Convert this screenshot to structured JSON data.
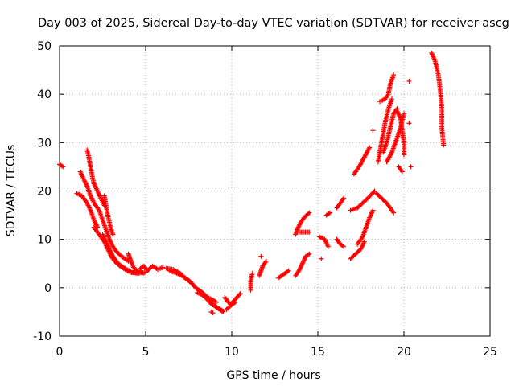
{
  "chart_data": {
    "type": "scatter",
    "title": "Day 003 of 2025, Sidereal Day-to-day VTEC variation (SDTVAR) for receiver ascg",
    "xlabel": "GPS time / hours",
    "ylabel": "SDTVAR / TECUs",
    "xlim": [
      0,
      25
    ],
    "ylim": [
      -10,
      50
    ],
    "xticks": [
      "0",
      "5",
      "10",
      "15",
      "20",
      "25"
    ],
    "yticks": [
      "-10",
      "0",
      "10",
      "20",
      "30",
      "40",
      "50"
    ],
    "marker": "+",
    "grid": true,
    "series": [
      {
        "name": "SDTVAR",
        "color": "#ff0000",
        "segments": [
          [
            [
              0.0,
              25.5
            ],
            [
              0.2,
              25.0
            ]
          ],
          [
            [
              1.0,
              19.5
            ],
            [
              1.3,
              19.0
            ],
            [
              1.6,
              17.5
            ],
            [
              1.8,
              16.0
            ],
            [
              2.0,
              14.0
            ],
            [
              2.2,
              12.5
            ]
          ],
          [
            [
              1.2,
              24.0
            ],
            [
              1.4,
              22.5
            ],
            [
              1.6,
              21.0
            ],
            [
              1.8,
              19.0
            ],
            [
              2.0,
              17.5
            ],
            [
              2.3,
              16.0
            ],
            [
              2.5,
              14.0
            ],
            [
              2.7,
              12.0
            ],
            [
              2.9,
              10.0
            ],
            [
              3.1,
              8.5
            ],
            [
              3.3,
              7.5
            ],
            [
              3.6,
              6.5
            ],
            [
              4.0,
              5.5
            ]
          ],
          [
            [
              1.6,
              28.5
            ],
            [
              1.7,
              27.0
            ],
            [
              1.8,
              25.0
            ],
            [
              1.9,
              23.0
            ],
            [
              2.0,
              21.5
            ],
            [
              2.2,
              20.0
            ],
            [
              2.4,
              18.5
            ],
            [
              2.6,
              17.0
            ]
          ],
          [
            [
              2.0,
              12.5
            ],
            [
              2.3,
              11.0
            ],
            [
              2.6,
              9.5
            ],
            [
              2.8,
              8.0
            ],
            [
              3.0,
              6.5
            ],
            [
              3.2,
              5.5
            ],
            [
              3.5,
              4.5
            ],
            [
              3.8,
              3.8
            ],
            [
              4.1,
              3.2
            ],
            [
              4.5,
              3.0
            ],
            [
              5.0,
              3.2
            ]
          ],
          [
            [
              2.5,
              11.0
            ],
            [
              2.7,
              9.5
            ],
            [
              2.9,
              8.0
            ],
            [
              3.1,
              6.5
            ],
            [
              3.4,
              5.0
            ],
            [
              3.8,
              4.0
            ],
            [
              4.2,
              3.2
            ],
            [
              4.6,
              3.0
            ]
          ],
          [
            [
              2.6,
              19.0
            ],
            [
              2.7,
              17.0
            ],
            [
              2.8,
              15.0
            ],
            [
              2.9,
              13.5
            ],
            [
              3.0,
              12.0
            ],
            [
              3.1,
              11.0
            ]
          ],
          [
            [
              4.0,
              7.0
            ],
            [
              4.1,
              6.0
            ],
            [
              4.2,
              5.0
            ],
            [
              4.3,
              4.2
            ],
            [
              4.5,
              3.5
            ],
            [
              4.9,
              3.0
            ]
          ],
          [
            [
              4.7,
              4.0
            ],
            [
              4.9,
              4.5
            ],
            [
              5.1,
              3.5
            ],
            [
              5.4,
              4.5
            ],
            [
              5.7,
              3.8
            ],
            [
              6.0,
              4.2
            ]
          ],
          [
            [
              6.2,
              4.0
            ],
            [
              6.6,
              3.8
            ],
            [
              7.0,
              3.0
            ],
            [
              7.3,
              2.0
            ],
            [
              7.6,
              1.2
            ],
            [
              7.8,
              0.5
            ]
          ],
          [
            [
              6.4,
              3.5
            ],
            [
              6.8,
              3.0
            ],
            [
              7.1,
              2.5
            ],
            [
              7.5,
              1.5
            ],
            [
              7.9,
              0.0
            ],
            [
              8.3,
              -1.0
            ],
            [
              8.6,
              -2.0
            ],
            [
              8.9,
              -2.5
            ],
            [
              9.1,
              -3.0
            ]
          ],
          [
            [
              8.0,
              -1.0
            ],
            [
              8.3,
              -1.5
            ],
            [
              8.6,
              -2.5
            ],
            [
              8.9,
              -3.5
            ],
            [
              9.2,
              -4.2
            ],
            [
              9.5,
              -4.8
            ]
          ],
          [
            [
              8.7,
              -3.0
            ],
            [
              8.9,
              -3.5
            ],
            [
              9.1,
              -4.0
            ],
            [
              9.3,
              -4.5
            ],
            [
              9.5,
              -5.0
            ]
          ],
          [
            [
              8.9,
              -5.2
            ],
            [
              8.8,
              -5.0
            ]
          ],
          [
            [
              9.6,
              -2.0
            ],
            [
              9.8,
              -3.0
            ],
            [
              10.0,
              -3.5
            ],
            [
              10.2,
              -3.0
            ]
          ],
          [
            [
              9.7,
              -4.5
            ],
            [
              9.9,
              -3.8
            ],
            [
              10.1,
              -2.8
            ],
            [
              10.3,
              -2.0
            ],
            [
              10.5,
              -1.2
            ]
          ],
          [
            [
              11.1,
              -0.5
            ],
            [
              11.1,
              1.5
            ],
            [
              11.2,
              3.0
            ]
          ],
          [
            [
              11.6,
              2.5
            ],
            [
              11.7,
              3.5
            ],
            [
              11.8,
              4.5
            ],
            [
              12.0,
              5.5
            ]
          ],
          [
            [
              11.7,
              6.5
            ]
          ],
          [
            [
              12.7,
              2.0
            ],
            [
              12.9,
              2.5
            ],
            [
              13.1,
              3.0
            ],
            [
              13.3,
              3.5
            ]
          ],
          [
            [
              13.7,
              2.5
            ],
            [
              13.9,
              3.5
            ],
            [
              14.1,
              5.0
            ],
            [
              14.3,
              6.5
            ],
            [
              14.5,
              7.0
            ]
          ],
          [
            [
              13.7,
              11.0
            ],
            [
              13.8,
              12.0
            ],
            [
              14.0,
              13.5
            ],
            [
              14.2,
              14.5
            ],
            [
              14.5,
              15.5
            ]
          ],
          [
            [
              13.9,
              11.5
            ],
            [
              14.2,
              11.5
            ],
            [
              14.5,
              11.5
            ]
          ],
          [
            [
              15.2,
              6.0
            ]
          ],
          [
            [
              15.1,
              10.5
            ],
            [
              15.4,
              10.0
            ],
            [
              15.6,
              8.5
            ]
          ],
          [
            [
              15.5,
              15.0
            ],
            [
              15.7,
              15.5
            ]
          ],
          [
            [
              16.1,
              16.5
            ],
            [
              16.3,
              17.5
            ],
            [
              16.5,
              18.5
            ]
          ],
          [
            [
              16.1,
              10.0
            ],
            [
              16.3,
              9.0
            ],
            [
              16.5,
              8.5
            ]
          ],
          [
            [
              16.9,
              6.0
            ],
            [
              17.2,
              7.0
            ],
            [
              17.5,
              8.0
            ],
            [
              17.7,
              9.5
            ]
          ],
          [
            [
              16.9,
              16.0
            ],
            [
              17.3,
              16.5
            ],
            [
              17.6,
              17.5
            ],
            [
              17.9,
              18.5
            ],
            [
              18.3,
              20.0
            ]
          ],
          [
            [
              17.3,
              9.0
            ],
            [
              17.6,
              10.5
            ],
            [
              17.8,
              12.5
            ],
            [
              18.0,
              14.5
            ],
            [
              18.2,
              16.0
            ]
          ],
          [
            [
              17.1,
              23.5
            ],
            [
              17.4,
              25.0
            ],
            [
              17.7,
              27.0
            ],
            [
              18.0,
              29.0
            ]
          ],
          [
            [
              18.4,
              19.5
            ],
            [
              18.7,
              18.5
            ],
            [
              19.0,
              17.5
            ],
            [
              19.2,
              16.5
            ],
            [
              19.4,
              15.5
            ]
          ],
          [
            [
              18.2,
              32.5
            ]
          ],
          [
            [
              18.5,
              26.0
            ],
            [
              18.7,
              30.0
            ],
            [
              18.9,
              34.0
            ],
            [
              19.1,
              37.0
            ],
            [
              19.3,
              39.0
            ]
          ],
          [
            [
              18.6,
              38.5
            ],
            [
              18.9,
              39.0
            ],
            [
              19.1,
              40.0
            ],
            [
              19.2,
              42.0
            ],
            [
              19.4,
              44.0
            ]
          ],
          [
            [
              18.8,
              28.0
            ],
            [
              19.0,
              30.0
            ],
            [
              19.2,
              33.0
            ],
            [
              19.4,
              36.0
            ],
            [
              19.6,
              37.0
            ]
          ],
          [
            [
              19.0,
              26.0
            ],
            [
              19.3,
              28.0
            ],
            [
              19.6,
              31.0
            ],
            [
              19.8,
              33.0
            ],
            [
              20.0,
              36.0
            ]
          ],
          [
            [
              19.6,
              36.5
            ],
            [
              19.8,
              35.0
            ],
            [
              20.0,
              30.0
            ],
            [
              20.0,
              27.5
            ]
          ],
          [
            [
              19.7,
              25.0
            ],
            [
              19.9,
              24.0
            ]
          ],
          [
            [
              20.3,
              42.7
            ]
          ],
          [
            [
              20.3,
              34.0
            ]
          ],
          [
            [
              20.4,
              25.0
            ]
          ],
          [
            [
              21.6,
              48.5
            ],
            [
              21.8,
              47.0
            ],
            [
              22.0,
              44.0
            ],
            [
              22.1,
              41.0
            ],
            [
              22.2,
              37.0
            ],
            [
              22.2,
              33.0
            ],
            [
              22.3,
              29.5
            ]
          ]
        ]
      }
    ]
  }
}
